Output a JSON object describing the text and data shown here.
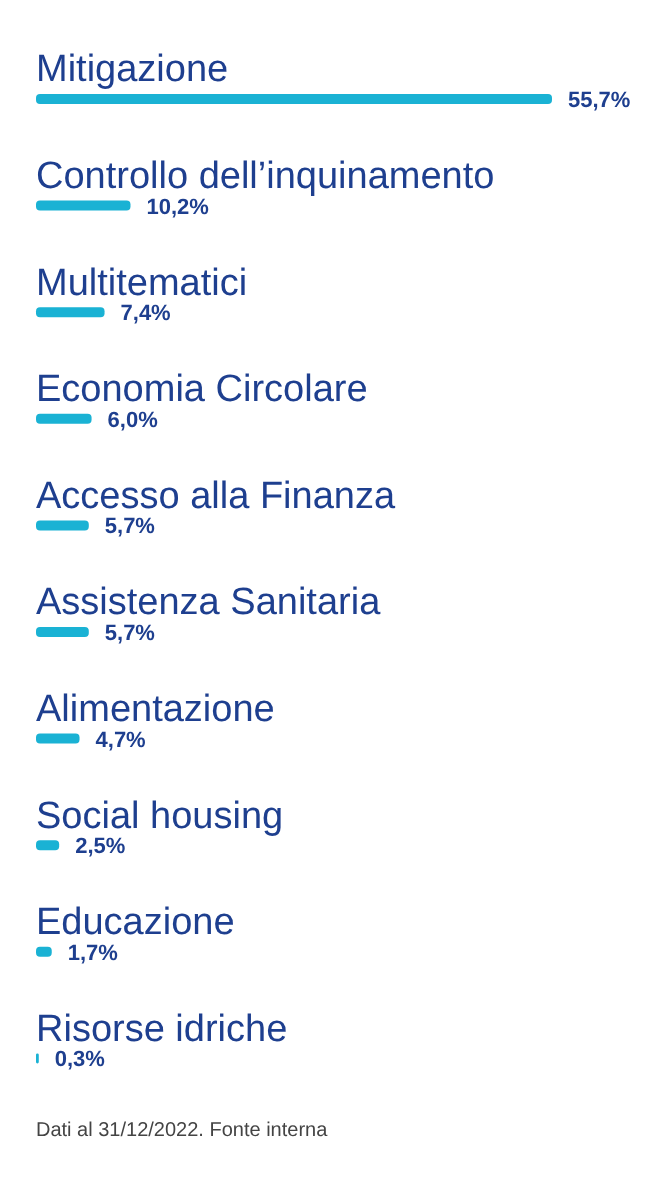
{
  "chart_data": {
    "type": "bar",
    "orientation": "horizontal",
    "tick_labels": "y",
    "categories": [
      "Mitigazione",
      "Controllo dell’inquinamento",
      "Multitematici",
      "Economia Circolare",
      "Accesso alla Finanza",
      "Assistenza Sanitaria",
      "Alimentazione",
      "Social housing",
      "Educazione",
      "Risorse idriche"
    ],
    "values": [
      55.7,
      10.2,
      7.4,
      6.0,
      5.7,
      5.7,
      4.7,
      2.5,
      1.7,
      0.3
    ],
    "value_labels": [
      "55,7%",
      "10,2%",
      "7,4%",
      "6,0%",
      "5,7%",
      "5,7%",
      "4,7%",
      "2,5%",
      "1,7%",
      "0,3%"
    ],
    "color": "#1ab2d4",
    "annotations": [
      "Dati al 31/12/2022. Fonte interna"
    ]
  }
}
